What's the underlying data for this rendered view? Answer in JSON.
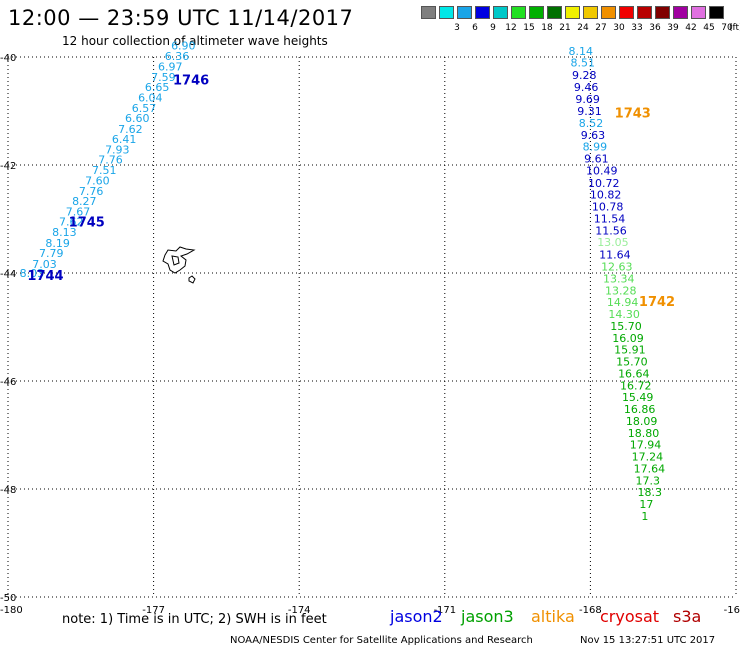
{
  "header": {
    "title": "12:00 — 23:59 UTC 11/14/2017",
    "subtitle": "12 hour collection of altimeter wave heights"
  },
  "scale": {
    "unit": "(ft)",
    "bins": [
      {
        "label": "",
        "color": "#7f7f7f"
      },
      {
        "label": "3",
        "color": "#00e8e8"
      },
      {
        "label": "6",
        "color": "#1aa5e8"
      },
      {
        "label": "9",
        "color": "#0000e0"
      },
      {
        "label": "12",
        "color": "#00c8c8"
      },
      {
        "label": "15",
        "color": "#22e022"
      },
      {
        "label": "18",
        "color": "#00b000"
      },
      {
        "label": "21",
        "color": "#007000"
      },
      {
        "label": "24",
        "color": "#f0f000"
      },
      {
        "label": "27",
        "color": "#f0c800"
      },
      {
        "label": "30",
        "color": "#f09000"
      },
      {
        "label": "33",
        "color": "#f00000"
      },
      {
        "label": "36",
        "color": "#b80000"
      },
      {
        "label": "39",
        "color": "#800000"
      },
      {
        "label": "42",
        "color": "#a000a0"
      },
      {
        "label": "45",
        "color": "#e070e0"
      },
      {
        "label": "70",
        "color": "#000000"
      }
    ]
  },
  "axes": {
    "x_ticks": [
      {
        "lon": -180,
        "label": "-180"
      },
      {
        "lon": -177,
        "label": "-177"
      },
      {
        "lon": -174,
        "label": "-174"
      },
      {
        "lon": -171,
        "label": "-171"
      },
      {
        "lon": -168,
        "label": "-168"
      },
      {
        "lon": -165,
        "label": "-16"
      }
    ],
    "y_ticks": [
      {
        "lat": -40,
        "label": "-40"
      },
      {
        "lat": -42,
        "label": "-42"
      },
      {
        "lat": -44,
        "label": "-44"
      },
      {
        "lat": -46,
        "label": "-46"
      },
      {
        "lat": -48,
        "label": "-48"
      },
      {
        "lat": -50,
        "label": "-50"
      }
    ]
  },
  "tracks": [
    {
      "color": "#1aa5e8",
      "points": [
        {
          "lon": -179.76,
          "lat": -44.0,
          "value": "8.03"
        },
        {
          "lon": -179.5,
          "lat": -43.83,
          "value": "7.03"
        },
        {
          "lon": -179.36,
          "lat": -43.63,
          "value": "7.79"
        },
        {
          "lon": -179.23,
          "lat": -43.44,
          "value": "8.19"
        },
        {
          "lon": -179.09,
          "lat": -43.24,
          "value": "8.13"
        },
        {
          "lon": -178.95,
          "lat": -43.05,
          "value": "7.62"
        },
        {
          "lon": -178.81,
          "lat": -42.86,
          "value": "7.67"
        },
        {
          "lon": -178.68,
          "lat": -42.67,
          "value": "8.27"
        },
        {
          "lon": -178.54,
          "lat": -42.48,
          "value": "7.76"
        },
        {
          "lon": -178.41,
          "lat": -42.29,
          "value": "7.60"
        },
        {
          "lon": -178.27,
          "lat": -42.09,
          "value": "7.51"
        },
        {
          "lon": -178.14,
          "lat": -41.9,
          "value": "7.76"
        },
        {
          "lon": -178.0,
          "lat": -41.71,
          "value": "7.93"
        },
        {
          "lon": -177.86,
          "lat": -41.52,
          "value": "6.41"
        },
        {
          "lon": -177.73,
          "lat": -41.33,
          "value": "7.62"
        },
        {
          "lon": -177.59,
          "lat": -41.13,
          "value": "6.60"
        },
        {
          "lon": -177.45,
          "lat": -40.94,
          "value": "6.57"
        },
        {
          "lon": -177.32,
          "lat": -40.75,
          "value": "6.04"
        },
        {
          "lon": -177.18,
          "lat": -40.56,
          "value": "6.65"
        },
        {
          "lon": -177.05,
          "lat": -40.37,
          "value": "7.59"
        },
        {
          "lon": -176.91,
          "lat": -40.18,
          "value": "6.97"
        },
        {
          "lon": -176.77,
          "lat": -39.98,
          "value": "6.36"
        },
        {
          "lon": -176.64,
          "lat": -39.79,
          "value": "6.90"
        }
      ]
    },
    {
      "color": "#1aa5e8",
      "points": [
        {
          "lon": -168.45,
          "lat": -39.89,
          "value": "8.14"
        },
        {
          "lon": -168.41,
          "lat": -40.1,
          "value": "8.51"
        }
      ]
    },
    {
      "color": "#0000c0",
      "points": [
        {
          "lon": -168.38,
          "lat": -40.33,
          "value": "9.28"
        },
        {
          "lon": -168.34,
          "lat": -40.56,
          "value": "9.46"
        },
        {
          "lon": -168.31,
          "lat": -40.78,
          "value": "9.69"
        },
        {
          "lon": -168.27,
          "lat": -41.0,
          "value": "9.31"
        }
      ]
    },
    {
      "color": "#1aa5e8",
      "points": [
        {
          "lon": -168.24,
          "lat": -41.22,
          "value": "8.52"
        }
      ]
    },
    {
      "color": "#0000c0",
      "points": [
        {
          "lon": -168.2,
          "lat": -41.44,
          "value": "9.63"
        }
      ]
    },
    {
      "color": "#1aa5e8",
      "points": [
        {
          "lon": -168.16,
          "lat": -41.66,
          "value": "8.99"
        }
      ]
    },
    {
      "color": "#0000c0",
      "points": [
        {
          "lon": -168.13,
          "lat": -41.88,
          "value": "9.61"
        },
        {
          "lon": -168.09,
          "lat": -42.1,
          "value": "10.49"
        },
        {
          "lon": -168.05,
          "lat": -42.33,
          "value": "10.72"
        },
        {
          "lon": -168.01,
          "lat": -42.55,
          "value": "10.82"
        },
        {
          "lon": -167.97,
          "lat": -42.77,
          "value": "10.78"
        },
        {
          "lon": -167.93,
          "lat": -42.99,
          "value": "11.54"
        },
        {
          "lon": -167.9,
          "lat": -43.21,
          "value": "11.56"
        }
      ]
    },
    {
      "color": "#99ee99",
      "points": [
        {
          "lon": -167.86,
          "lat": -43.43,
          "value": "13.05"
        }
      ]
    },
    {
      "color": "#0000c0",
      "points": [
        {
          "lon": -167.82,
          "lat": -43.66,
          "value": "11.64"
        }
      ]
    },
    {
      "color": "#55dd55",
      "points": [
        {
          "lon": -167.78,
          "lat": -43.88,
          "value": "12.63"
        },
        {
          "lon": -167.74,
          "lat": -44.1,
          "value": "13.34"
        },
        {
          "lon": -167.7,
          "lat": -44.32,
          "value": "13.28"
        },
        {
          "lon": -167.66,
          "lat": -44.54,
          "value": "14.94"
        },
        {
          "lon": -167.63,
          "lat": -44.76,
          "value": "14.30"
        }
      ]
    },
    {
      "color": "#00a800",
      "points": [
        {
          "lon": -167.59,
          "lat": -44.98,
          "value": "15.70"
        },
        {
          "lon": -167.55,
          "lat": -45.2,
          "value": "16.09"
        },
        {
          "lon": -167.51,
          "lat": -45.42,
          "value": "15.91"
        },
        {
          "lon": -167.47,
          "lat": -45.64,
          "value": "15.70"
        },
        {
          "lon": -167.43,
          "lat": -45.86,
          "value": "16.64"
        },
        {
          "lon": -167.39,
          "lat": -46.08,
          "value": "16.72"
        },
        {
          "lon": -167.35,
          "lat": -46.3,
          "value": "15.49"
        },
        {
          "lon": -167.31,
          "lat": -46.52,
          "value": "16.86"
        },
        {
          "lon": -167.27,
          "lat": -46.74,
          "value": "18.09"
        },
        {
          "lon": -167.23,
          "lat": -46.96,
          "value": "18.80"
        },
        {
          "lon": -167.19,
          "lat": -47.18,
          "value": "17.94"
        },
        {
          "lon": -167.15,
          "lat": -47.4,
          "value": "17.24"
        },
        {
          "lon": -167.11,
          "lat": -47.62,
          "value": "17.64"
        },
        {
          "lon": -167.07,
          "lat": -47.84,
          "value": "17.3"
        },
        {
          "lon": -167.03,
          "lat": -48.06,
          "value": "18.3"
        },
        {
          "lon": -166.99,
          "lat": -48.28,
          "value": "17"
        },
        {
          "lon": -166.95,
          "lat": -48.5,
          "value": "1"
        }
      ]
    }
  ],
  "track_labels": [
    {
      "text": "1746",
      "lon": -176.6,
      "lat": -40.42,
      "color": "#0000c0"
    },
    {
      "text": "1745",
      "lon": -178.75,
      "lat": -43.05,
      "color": "#0000c0"
    },
    {
      "text": "1744",
      "lon": -179.6,
      "lat": -44.04,
      "color": "#0000c0"
    },
    {
      "text": "1743",
      "lon": -167.5,
      "lat": -41.03,
      "color": "#f09000"
    },
    {
      "text": "1742",
      "lon": -167.0,
      "lat": -44.52,
      "color": "#f09000"
    }
  ],
  "note": "note: 1) Time is in UTC; 2) SWH is in feet",
  "legend": [
    {
      "name": "jason2",
      "color": "#0000e0"
    },
    {
      "name": "jason3",
      "color": "#00a000"
    },
    {
      "name": "altika",
      "color": "#f09000"
    },
    {
      "name": "cryosat",
      "color": "#e00000"
    },
    {
      "name": "s3a",
      "color": "#b00000"
    }
  ],
  "footer": {
    "credit": "NOAA/NESDIS Center for Satellite Applications and Research",
    "timestamp": "Nov 15 13:27:51 UTC 2017"
  }
}
